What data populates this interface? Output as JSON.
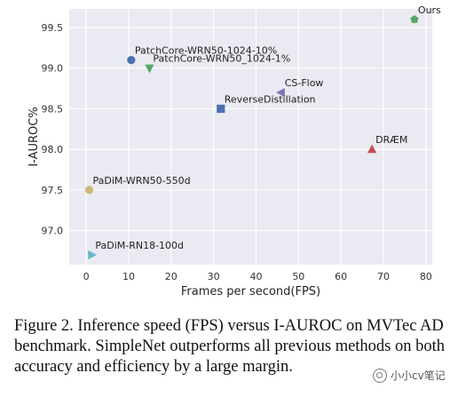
{
  "chart_data": {
    "type": "scatter",
    "xlabel": "Frames per second(FPS)",
    "ylabel": "I-AUROC%",
    "xlim": [
      -4,
      81.5
    ],
    "ylim": [
      96.58,
      99.73
    ],
    "xticks": [
      0,
      10,
      20,
      30,
      40,
      50,
      60,
      70,
      80
    ],
    "yticks": [
      97.0,
      97.5,
      98.0,
      98.5,
      99.0,
      99.5
    ],
    "ytick_labels": [
      "97.0",
      "97.5",
      "98.0",
      "98.5",
      "99.0",
      "99.5"
    ],
    "grid": true,
    "points": [
      {
        "label": "Ours",
        "x": 77.3,
        "y": 99.6,
        "marker": "pentagon",
        "color": "#5aa469"
      },
      {
        "label": "PatchCore-WRN50-1024-10%",
        "x": 10.6,
        "y": 99.1,
        "marker": "circle",
        "color": "#4c72b0"
      },
      {
        "label": "PatchCore-WRN50_1024-1%",
        "x": 14.9,
        "y": 99.0,
        "marker": "triangle-down",
        "color": "#55a868"
      },
      {
        "label": "CS-Flow",
        "x": 45.9,
        "y": 98.7,
        "marker": "triangle-left",
        "color": "#8172b2"
      },
      {
        "label": "ReverseDistillation",
        "x": 31.7,
        "y": 98.5,
        "marker": "square",
        "color": "#4c72b0"
      },
      {
        "label": "DRÆM",
        "x": 67.3,
        "y": 98.0,
        "marker": "triangle-up",
        "color": "#c44e52"
      },
      {
        "label": "PaDiM-WRN50-550d",
        "x": 0.7,
        "y": 97.5,
        "marker": "circle",
        "color": "#ccb974"
      },
      {
        "label": "PaDiM-RN18-100d",
        "x": 1.3,
        "y": 96.7,
        "marker": "triangle-right",
        "color": "#64b5cd"
      }
    ]
  },
  "caption": "Figure 2. Inference speed (FPS) versus I-AUROC on MVTec AD benchmark. SimpleNet outperforms all previous methods on both accuracy and efficiency by a large margin.",
  "watermark": "小小cv笔记"
}
